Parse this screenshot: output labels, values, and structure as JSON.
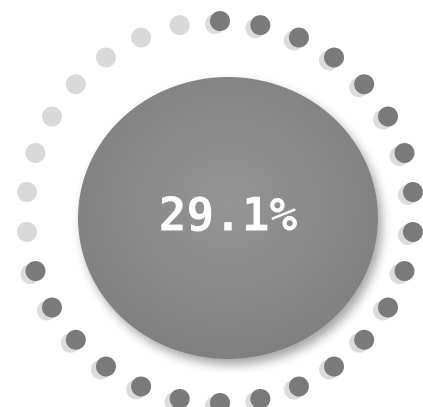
{
  "gauge": {
    "value": 29.1,
    "value_label": "29.1%"
  }
}
